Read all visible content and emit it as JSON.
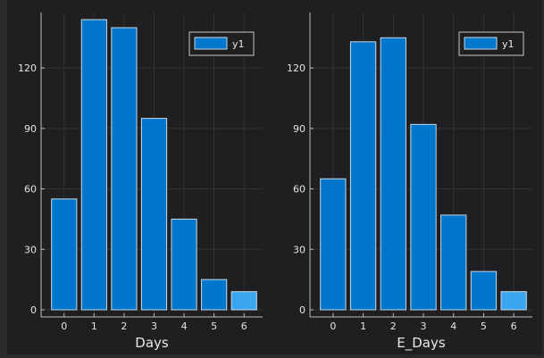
{
  "colors": {
    "bar": "#0077cc",
    "bar_highlight": "#3aa6f0",
    "bar_stroke": "#c8d8e8",
    "grid": "#333335",
    "axis": "#bdbdbd",
    "background": "#1f1f21",
    "legend_bg": "#1f1f21",
    "legend_border": "#c9c9c9"
  },
  "chart_data": [
    {
      "type": "bar",
      "categories": [
        "0",
        "1",
        "2",
        "3",
        "4",
        "5",
        "6"
      ],
      "series": [
        {
          "name": "y1",
          "values": [
            55,
            144,
            140,
            95,
            45,
            15,
            9
          ]
        }
      ],
      "xlabel": "Days",
      "ylabel": "",
      "yticks": [
        "0",
        "30",
        "60",
        "90",
        "120"
      ],
      "ylim": [
        0,
        144
      ],
      "grid": true,
      "legend": "top-right",
      "highlight_index": 6
    },
    {
      "type": "bar",
      "categories": [
        "0",
        "1",
        "2",
        "3",
        "4",
        "5",
        "6"
      ],
      "series": [
        {
          "name": "y1",
          "values": [
            65,
            133,
            135,
            92,
            47,
            19,
            9
          ]
        }
      ],
      "xlabel": "E_Days",
      "ylabel": "",
      "yticks": [
        "0",
        "30",
        "60",
        "90",
        "120"
      ],
      "ylim": [
        0,
        144
      ],
      "grid": true,
      "legend": "top-right",
      "highlight_index": 6
    }
  ]
}
